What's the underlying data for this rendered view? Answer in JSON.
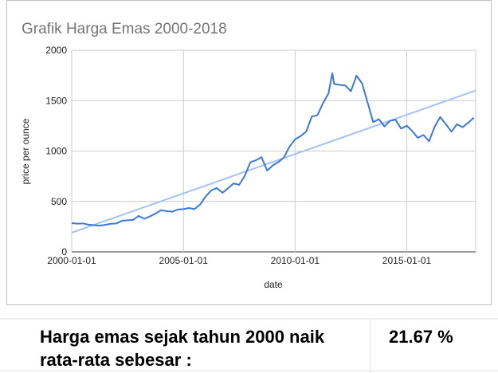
{
  "chart_data": {
    "type": "line",
    "title": "Grafik Harga Emas 2000-2018",
    "x_label": "date",
    "y_label": "price per ounce",
    "xlim": [
      "2000-01-01",
      "2018-02-01"
    ],
    "xticks": [
      "2000-01-01",
      "2005-01-01",
      "2010-01-01",
      "2015-01-01"
    ],
    "ylim": [
      0,
      2000
    ],
    "yticks": [
      0,
      500,
      1000,
      1500,
      2000
    ],
    "grid": true,
    "series": [
      {
        "color": "#3c78d8",
        "x": [
          "2000-01-01",
          "2000-04-01",
          "2000-07-01",
          "2000-10-01",
          "2001-01-01",
          "2001-04-01",
          "2001-07-01",
          "2001-10-01",
          "2002-01-01",
          "2002-04-01",
          "2002-07-01",
          "2002-10-01",
          "2003-01-01",
          "2003-04-01",
          "2003-07-01",
          "2003-10-01",
          "2004-01-01",
          "2004-04-01",
          "2004-07-01",
          "2004-10-01",
          "2005-01-01",
          "2005-04-01",
          "2005-07-01",
          "2005-10-01",
          "2006-01-01",
          "2006-04-01",
          "2006-07-01",
          "2006-10-01",
          "2007-01-01",
          "2007-04-01",
          "2007-07-01",
          "2007-10-01",
          "2008-01-01",
          "2008-04-01",
          "2008-07-01",
          "2008-10-01",
          "2009-01-01",
          "2009-04-01",
          "2009-07-01",
          "2009-10-01",
          "2010-01-01",
          "2010-04-01",
          "2010-07-01",
          "2010-10-01",
          "2011-01-01",
          "2011-04-01",
          "2011-07-01",
          "2011-09-01",
          "2011-10-01",
          "2012-01-01",
          "2012-04-01",
          "2012-07-01",
          "2012-10-01",
          "2013-01-01",
          "2013-04-01",
          "2013-07-01",
          "2013-10-01",
          "2014-01-01",
          "2014-04-01",
          "2014-07-01",
          "2014-10-01",
          "2015-01-01",
          "2015-04-01",
          "2015-07-01",
          "2015-10-01",
          "2016-01-01",
          "2016-04-01",
          "2016-07-01",
          "2016-10-01",
          "2017-01-01",
          "2017-04-01",
          "2017-07-01",
          "2017-10-01",
          "2018-01-01"
        ],
        "values": [
          285,
          280,
          282,
          270,
          265,
          260,
          268,
          279,
          282,
          308,
          313,
          317,
          357,
          328,
          351,
          379,
          413,
          404,
          398,
          420,
          424,
          435,
          424,
          470,
          550,
          610,
          633,
          586,
          631,
          679,
          665,
          754,
          889,
          909,
          939,
          806,
          858,
          890,
          935,
          1043,
          1117,
          1148,
          1193,
          1342,
          1356,
          1473,
          1572,
          1772,
          1665,
          1656,
          1650,
          1593,
          1747,
          1670,
          1480,
          1286,
          1316,
          1244,
          1299,
          1311,
          1222,
          1251,
          1197,
          1131,
          1159,
          1097,
          1242,
          1337,
          1266,
          1192,
          1266,
          1236,
          1280,
          1331
        ]
      }
    ],
    "trendline": {
      "color": "#a4c2f4",
      "x": [
        "2000-01-01",
        "2018-02-01"
      ],
      "values": [
        190,
        1600
      ]
    }
  },
  "summary": {
    "text": "Harga emas sejak tahun 2000 naik rata-rata sebesar :",
    "value": "21.67 %"
  }
}
